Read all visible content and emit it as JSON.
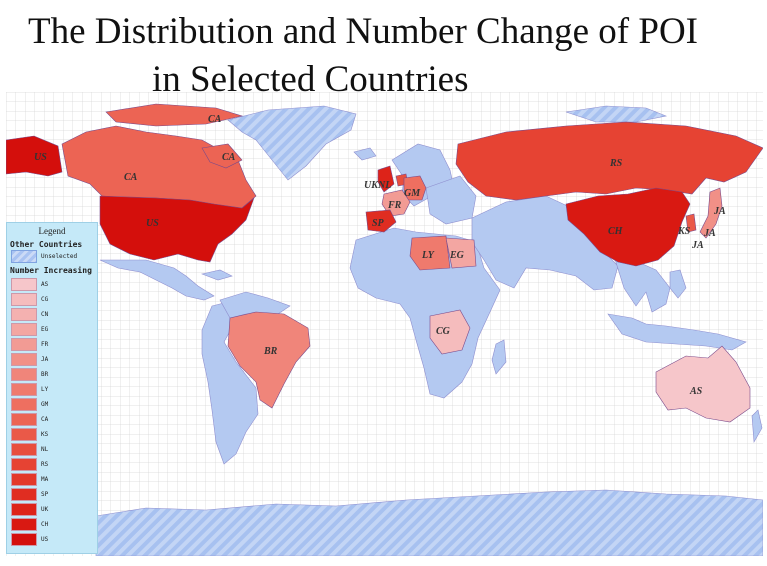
{
  "title_line1": "The Distribution  and Number Change of POI",
  "title_line2": "in Selected Countries",
  "legend": {
    "title": "Legend",
    "other_heading": "Other Countries",
    "unselected_label": "Unselected",
    "number_heading": "Number  Increasing",
    "items": [
      {
        "code": "AS",
        "color": "#f6c6ca"
      },
      {
        "code": "CG",
        "color": "#f5bcbd"
      },
      {
        "code": "CN",
        "color": "#f4b1b0"
      },
      {
        "code": "EG",
        "color": "#f3a6a2"
      },
      {
        "code": "FR",
        "color": "#f29b94"
      },
      {
        "code": "JA",
        "color": "#f19087"
      },
      {
        "code": "BR",
        "color": "#f0857a"
      },
      {
        "code": "LY",
        "color": "#ef7a6d"
      },
      {
        "code": "GM",
        "color": "#ee6f60"
      },
      {
        "code": "CA",
        "color": "#ec6454"
      },
      {
        "code": "KS",
        "color": "#ea5948"
      },
      {
        "code": "NL",
        "color": "#e84e3d"
      },
      {
        "code": "RS",
        "color": "#e64333"
      },
      {
        "code": "MA",
        "color": "#e3382a"
      },
      {
        "code": "SP",
        "color": "#e02d21"
      },
      {
        "code": "UK",
        "color": "#dd2319"
      },
      {
        "code": "CH",
        "color": "#d91912"
      },
      {
        "code": "US",
        "color": "#d40f0c"
      }
    ]
  },
  "map_labels": [
    "CA",
    "US",
    "CA",
    "CA",
    "US",
    "UK",
    "NL",
    "GM",
    "FR",
    "SP",
    "RS",
    "CH",
    "KS",
    "JA",
    "JA",
    "JA",
    "LY",
    "EG",
    "CG",
    "BR",
    "AS"
  ],
  "colors": {
    "unselected": "#b4c9f1",
    "ocean": "#ffffff",
    "grid": "#d4d4d4",
    "border": "#6a5aa8"
  }
}
